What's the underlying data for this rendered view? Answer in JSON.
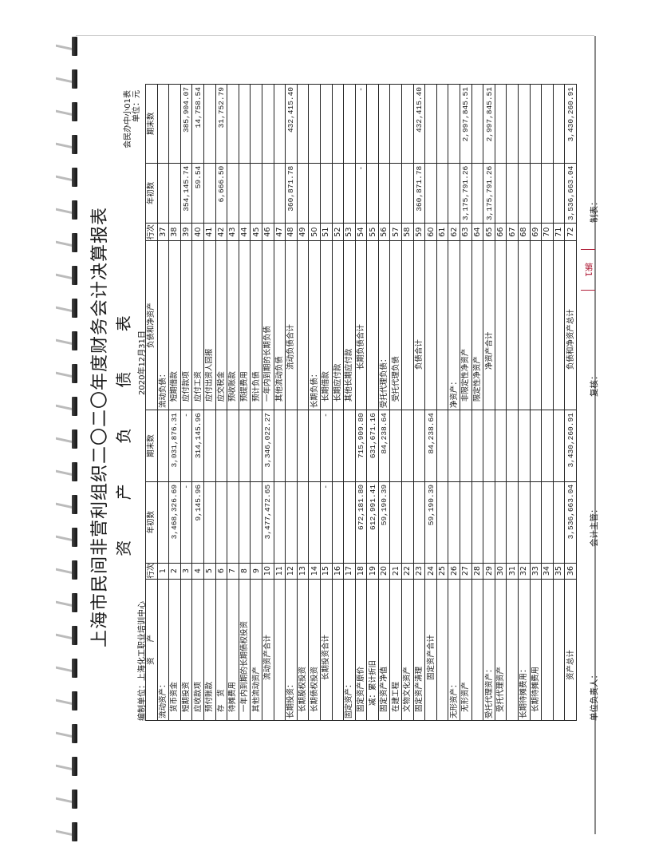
{
  "title": "上海市民间非营利组织二〇二〇年度财务会计决算报表",
  "subtitle": "资 产 负 债 表",
  "form_code": "会民办中小01表",
  "unit_label": "单位：元",
  "org": "编制单位：上海化工职业培训中心",
  "date": "2020年12月31日",
  "stamp": "第1",
  "headers": {
    "left": [
      "资　　产",
      "行次",
      "年初数",
      "期末数"
    ],
    "right": [
      "负债和净资产",
      "行次",
      "年初数",
      "期末数"
    ]
  },
  "rows": [
    {
      "l": [
        "流动资产：",
        "1",
        "",
        ""
      ],
      "li": 0,
      "r": [
        "流动负债：",
        "37",
        "",
        ""
      ],
      "ri": 0
    },
    {
      "l": [
        "货币资金",
        "2",
        "3,468,326.69",
        "3,031,876.31"
      ],
      "li": 1,
      "r": [
        "短期借款",
        "38",
        "",
        ""
      ],
      "ri": 1
    },
    {
      "l": [
        "短期投资",
        "3",
        "-",
        "-"
      ],
      "li": 1,
      "r": [
        "应付款项",
        "39",
        "354,145.74",
        "385,904.07"
      ],
      "ri": 1
    },
    {
      "l": [
        "应收款项",
        "4",
        "9,145.96",
        "314,145.96"
      ],
      "li": 1,
      "r": [
        "应付工资",
        "40",
        "59.54",
        "14,758.54"
      ],
      "ri": 1
    },
    {
      "l": [
        "预付账款",
        "5",
        "",
        ""
      ],
      "li": 1,
      "r": [
        "应付出资人回报",
        "41",
        "",
        ""
      ],
      "ri": 1
    },
    {
      "l": [
        "存　货",
        "6",
        "",
        ""
      ],
      "li": 1,
      "r": [
        "应交税金",
        "42",
        "6,666.50",
        "31,752.79"
      ],
      "ri": 1
    },
    {
      "l": [
        "待摊费用",
        "7",
        "",
        ""
      ],
      "li": 1,
      "r": [
        "预收账款",
        "43",
        "",
        ""
      ],
      "ri": 1
    },
    {
      "l": [
        "一年内到期的长期债权投资",
        "8",
        "",
        ""
      ],
      "li": 1,
      "r": [
        "预提费用",
        "44",
        "",
        ""
      ],
      "ri": 1
    },
    {
      "l": [
        "其他流动资产",
        "9",
        "",
        ""
      ],
      "li": 1,
      "r": [
        "预计负债",
        "45",
        "",
        ""
      ],
      "ri": 1
    },
    {
      "l": [
        "流动资产合计",
        "10",
        "3,477,472.65",
        "3,346,022.27"
      ],
      "li": "t",
      "r": [
        "一年内到期的长期负债",
        "46",
        "",
        ""
      ],
      "ri": 1
    },
    {
      "l": [
        "",
        "11",
        "",
        ""
      ],
      "li": 0,
      "r": [
        "其他流动负债",
        "47",
        "",
        ""
      ],
      "ri": 1
    },
    {
      "l": [
        "长期投资：",
        "12",
        "",
        ""
      ],
      "li": 0,
      "r": [
        "流动负债合计",
        "48",
        "360,871.78",
        "432,415.40"
      ],
      "ri": "t"
    },
    {
      "l": [
        "长期股权投资",
        "13",
        "",
        ""
      ],
      "li": 1,
      "r": [
        "",
        "49",
        "",
        ""
      ],
      "ri": 0
    },
    {
      "l": [
        "长期债权投资",
        "14",
        "",
        ""
      ],
      "li": 1,
      "r": [
        "长期负债：",
        "50",
        "",
        ""
      ],
      "ri": 0
    },
    {
      "l": [
        "长期投资合计",
        "15",
        "-",
        "-"
      ],
      "li": "t",
      "r": [
        "长期借款",
        "51",
        "",
        ""
      ],
      "ri": 1
    },
    {
      "l": [
        "",
        "16",
        "",
        ""
      ],
      "li": 0,
      "r": [
        "长期应付款",
        "52",
        "",
        ""
      ],
      "ri": 1
    },
    {
      "l": [
        "固定资产：",
        "17",
        "",
        ""
      ],
      "li": 0,
      "r": [
        "其他长期应付款",
        "53",
        "",
        ""
      ],
      "ri": 1
    },
    {
      "l": [
        "固定资产原价",
        "18",
        "672,181.80",
        "715,909.80"
      ],
      "li": 1,
      "r": [
        "长期负债合计",
        "54",
        "-",
        "-"
      ],
      "ri": "t"
    },
    {
      "l": [
        "减：累计折旧",
        "19",
        "612,991.41",
        "631,671.16"
      ],
      "li": 2,
      "r": [
        "",
        "55",
        "",
        ""
      ],
      "ri": 0
    },
    {
      "l": [
        "固定资产净值",
        "20",
        "59,190.39",
        "84,238.64"
      ],
      "li": 1,
      "r": [
        "受托代理负债：",
        "56",
        "",
        ""
      ],
      "ri": 0
    },
    {
      "l": [
        "在建工程",
        "21",
        "",
        ""
      ],
      "li": 1,
      "r": [
        "受托代理负债",
        "57",
        "",
        ""
      ],
      "ri": 1
    },
    {
      "l": [
        "文物文化资产",
        "22",
        "",
        ""
      ],
      "li": 1,
      "r": [
        "",
        "58",
        "",
        ""
      ],
      "ri": 0
    },
    {
      "l": [
        "固定资产清理",
        "23",
        "",
        ""
      ],
      "li": 1,
      "r": [
        "负债合计",
        "59",
        "360,871.78",
        "432,415.40"
      ],
      "ri": "t"
    },
    {
      "l": [
        "固定资产合计",
        "24",
        "59,190.39",
        "84,238.64"
      ],
      "li": "t",
      "r": [
        "",
        "60",
        "",
        ""
      ],
      "ri": 0
    },
    {
      "l": [
        "",
        "25",
        "",
        ""
      ],
      "li": 0,
      "r": [
        "",
        "61",
        "",
        ""
      ],
      "ri": 0
    },
    {
      "l": [
        "无形资产：",
        "26",
        "",
        ""
      ],
      "li": 0,
      "r": [
        "净资产：",
        "62",
        "",
        ""
      ],
      "ri": 0
    },
    {
      "l": [
        "无形资产",
        "27",
        "",
        ""
      ],
      "li": 1,
      "r": [
        "非限定性净资产",
        "63",
        "3,175,791.26",
        "2,997,845.51"
      ],
      "ri": 1
    },
    {
      "l": [
        "",
        "28",
        "",
        ""
      ],
      "li": 0,
      "r": [
        "限定性净资产",
        "64",
        "",
        ""
      ],
      "ri": 1
    },
    {
      "l": [
        "受托代理资产：",
        "29",
        "",
        ""
      ],
      "li": 0,
      "r": [
        "净资产合计",
        "65",
        "3,175,791.26",
        "2,997,845.51"
      ],
      "ri": "t"
    },
    {
      "l": [
        "受托代理资产",
        "30",
        "",
        ""
      ],
      "li": 1,
      "r": [
        "",
        "66",
        "",
        ""
      ],
      "ri": 0
    },
    {
      "l": [
        "",
        "31",
        "",
        ""
      ],
      "li": 0,
      "r": [
        "",
        "67",
        "",
        ""
      ],
      "ri": 0
    },
    {
      "l": [
        "长期待摊费用：",
        "32",
        "",
        ""
      ],
      "li": 0,
      "r": [
        "",
        "68",
        "",
        ""
      ],
      "ri": 0
    },
    {
      "l": [
        "长期待摊费用",
        "33",
        "",
        ""
      ],
      "li": 1,
      "r": [
        "",
        "69",
        "",
        ""
      ],
      "ri": 0
    },
    {
      "l": [
        "",
        "34",
        "",
        ""
      ],
      "li": 0,
      "r": [
        "",
        "70",
        "",
        ""
      ],
      "ri": 0
    },
    {
      "l": [
        "",
        "35",
        "",
        ""
      ],
      "li": 0,
      "r": [
        "",
        "71",
        "",
        ""
      ],
      "ri": 0
    },
    {
      "l": [
        "资产总计",
        "36",
        "3,536,663.04",
        "3,430,260.91"
      ],
      "li": "t",
      "r": [
        "负债和净资产总计",
        "72",
        "3,536,663.04",
        "3,430,260.91"
      ],
      "ri": "t"
    }
  ],
  "footer": {
    "head": "单位负责人：",
    "chief_accountant": "会计主管：",
    "reviewer": "复核：",
    "preparer": "制表："
  }
}
